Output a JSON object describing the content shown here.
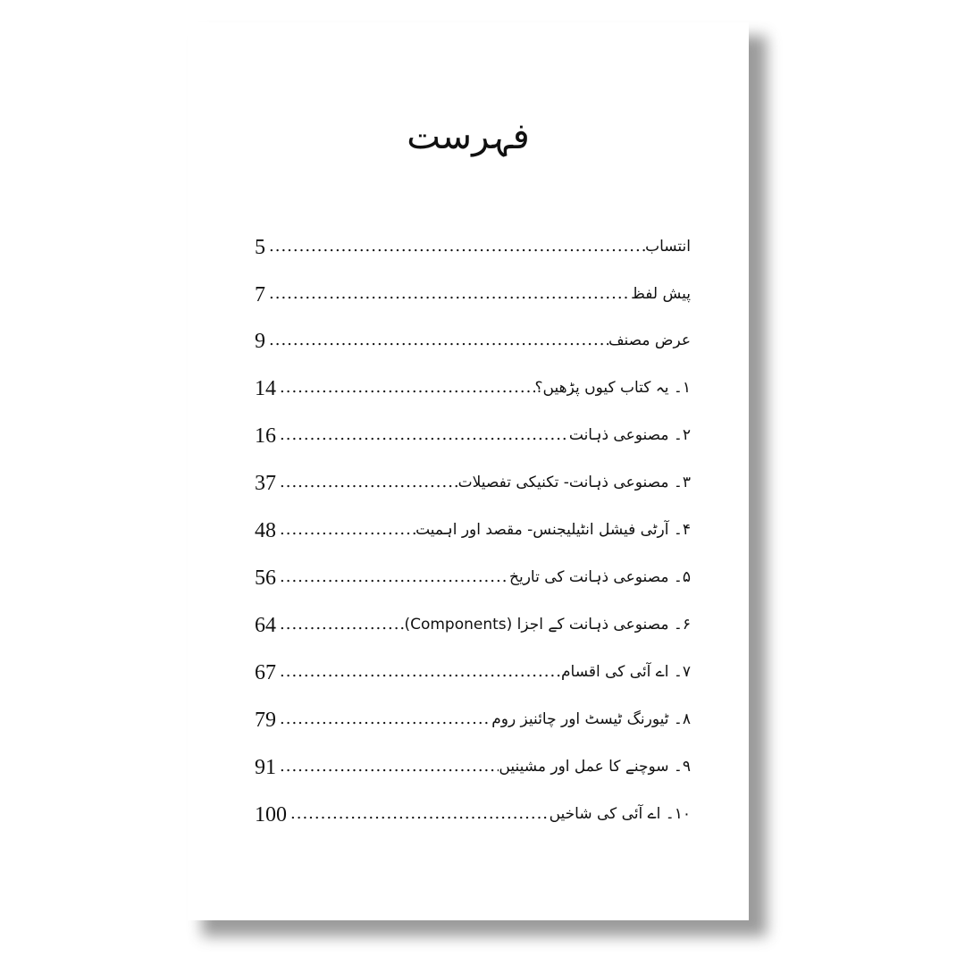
{
  "title": "فہرست",
  "entries": [
    {
      "label": "انتساب",
      "page": "5"
    },
    {
      "label": "پیش لفظ",
      "page": "7"
    },
    {
      "label": "عرض مصنف",
      "page": "9"
    },
    {
      "label": "۱۔ یہ کتاب کیوں پڑھیں؟",
      "page": "14"
    },
    {
      "label": "۲۔ مصنوعی ذہانت",
      "page": "16"
    },
    {
      "label": "۳۔ مصنوعی ذہانت- تکنیکی تفصیلات",
      "page": "37"
    },
    {
      "label": "۴۔ آرٹی فیشل انٹیلیجنس- مقصد اور اہمیت",
      "page": "48"
    },
    {
      "label": "۵۔ مصنوعی ذہانت کی تاریخ",
      "page": "56"
    },
    {
      "label": "۶۔ مصنوعی ذہانت کے اجزا (Components)",
      "page": "64"
    },
    {
      "label": "۷۔ اے آئی کی اقسام",
      "page": "67"
    },
    {
      "label": "۸۔ ٹیورنگ ٹیسٹ اور چائنیز روم",
      "page": "79"
    },
    {
      "label": "۹۔ سوچنے کا عمل اور مشینیں",
      "page": "91"
    },
    {
      "label": "۱۰۔ اے آئی کی شاخیں",
      "page": "100"
    }
  ]
}
